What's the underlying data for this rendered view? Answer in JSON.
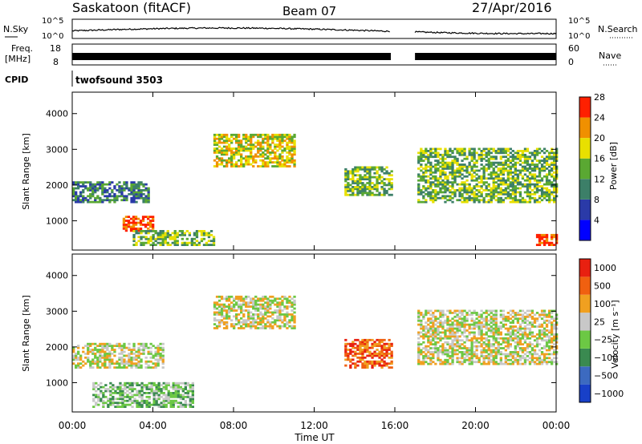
{
  "header": {
    "station": "Saskatoon (fitACF)",
    "beam": "Beam 07",
    "date": "27/Apr/2016"
  },
  "strips": {
    "nsky_label": "N.Sky",
    "nsky_ticks": [
      "10^5",
      "10^0"
    ],
    "nsearch_label": "N.Search",
    "nsearch_ticks": [
      "10^5",
      "10^0"
    ],
    "freq_label": "Freq.",
    "freq_unit": "[MHz]",
    "freq_ticks": [
      "18",
      "8"
    ],
    "nave_label": "Nave",
    "nave_ticks": [
      "60",
      "0"
    ],
    "cpid_label": "CPID",
    "cpid_value": "twofsound 3503"
  },
  "chart_data": [
    {
      "type": "heatmap",
      "panel": "power",
      "ylabel": "Slant Range [km]",
      "yticks": [
        1000,
        2000,
        3000,
        4000
      ],
      "ylim": [
        180,
        4600
      ],
      "colorbar_label": "Power [dB]",
      "colorbar_ticks": [
        "4",
        "8",
        "12",
        "16",
        "20",
        "24",
        "28"
      ],
      "colorbar_colors": [
        "#0000ff",
        "#2a3aa8",
        "#3c7f68",
        "#5aa832",
        "#e8e000",
        "#f09000",
        "#ff2000"
      ],
      "echo_regions": [
        {
          "t0": 0.0,
          "t1": 3.8,
          "r0": 1500,
          "r1": 2100,
          "level": 2
        },
        {
          "t0": 2.5,
          "t1": 4.0,
          "r0": 700,
          "r1": 1100,
          "level": 6
        },
        {
          "t0": 3.0,
          "t1": 7.0,
          "r0": 300,
          "r1": 700,
          "level": 3
        },
        {
          "t0": 7.0,
          "t1": 11.0,
          "r0": 2500,
          "r1": 3400,
          "level": 4
        },
        {
          "t0": 13.5,
          "t1": 16.0,
          "r0": 1700,
          "r1": 2500,
          "level": 3
        },
        {
          "t0": 17.0,
          "t1": 24.0,
          "r0": 1500,
          "r1": 3000,
          "level": 3
        },
        {
          "t0": 23.0,
          "t1": 24.0,
          "r0": 300,
          "r1": 600,
          "level": 6
        }
      ]
    },
    {
      "type": "heatmap",
      "panel": "velocity",
      "ylabel": "Slant Range [km]",
      "yticks": [
        1000,
        2000,
        3000,
        4000
      ],
      "ylim": [
        180,
        4600
      ],
      "colorbar_label": "Velocity [m s⁻¹]",
      "colorbar_ticks": [
        "1000",
        "500",
        "100",
        "25",
        "−25",
        "−100",
        "−500",
        "−1000"
      ],
      "colorbar_colors": [
        "#1840c8",
        "#3c6ac0",
        "#3a8a50",
        "#6cc844",
        "#c8c8c8",
        "#f0a020",
        "#f06010",
        "#e82010"
      ],
      "echo_regions": [
        {
          "t0": 0.0,
          "t1": 4.5,
          "r0": 1400,
          "r1": 2100,
          "level": 4
        },
        {
          "t0": 1.0,
          "t1": 6.0,
          "r0": 300,
          "r1": 1000,
          "level": 3
        },
        {
          "t0": 7.0,
          "t1": 11.0,
          "r0": 2500,
          "r1": 3400,
          "level": 4
        },
        {
          "t0": 13.5,
          "t1": 16.0,
          "r0": 1400,
          "r1": 2200,
          "level": 6
        },
        {
          "t0": 17.0,
          "t1": 24.0,
          "r0": 1500,
          "r1": 3000,
          "level": 4
        }
      ]
    }
  ],
  "time_axis": {
    "label": "Time UT",
    "ticks": [
      "00:00",
      "04:00",
      "08:00",
      "12:00",
      "16:00",
      "20:00",
      "00:00"
    ],
    "range_hours": [
      0,
      24
    ],
    "data_gap_hours": [
      15.8,
      17.0
    ]
  }
}
